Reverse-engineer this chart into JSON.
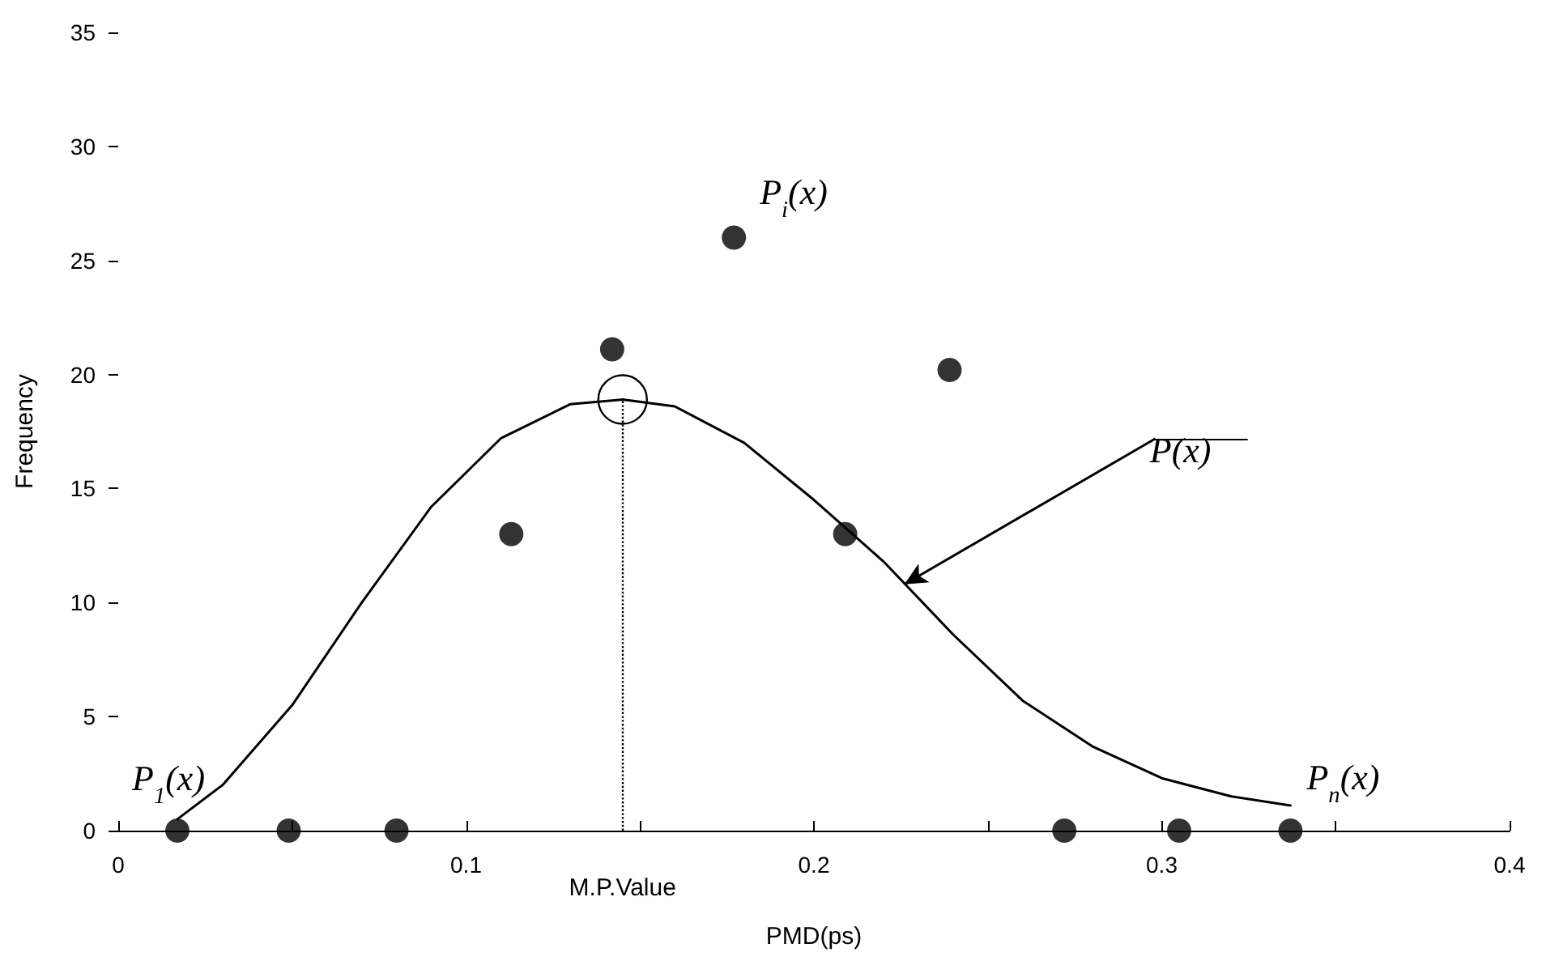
{
  "chart_data": {
    "type": "scatter",
    "xlabel": "PMD(ps)",
    "ylabel": "Frequency",
    "xlim": [
      0,
      0.4
    ],
    "ylim": [
      0,
      35
    ],
    "xticks": [
      0,
      {
        "value": 0.05,
        "label": null
      },
      0.1,
      {
        "value": 0.15,
        "label": null
      },
      0.2,
      {
        "value": 0.25,
        "label": null
      },
      0.3,
      {
        "value": 0.35,
        "label": null
      },
      0.4
    ],
    "yticks": [
      0,
      5,
      10,
      15,
      20,
      25,
      30,
      35
    ],
    "grid": false,
    "series": [
      {
        "marker": "circle",
        "color": "#000000",
        "x": [
          0.017,
          0.049,
          0.08,
          0.113,
          0.142,
          0.177,
          0.209,
          0.239,
          0.272,
          0.305,
          0.337
        ],
        "values": [
          0,
          0,
          0,
          13,
          21.1,
          26,
          13,
          20.2,
          0,
          0,
          0
        ]
      },
      {
        "type": "line",
        "marker": "none",
        "line_style": "solid",
        "color": "#000000",
        "x": [
          0.017,
          0.03,
          0.05,
          0.07,
          0.09,
          0.11,
          0.13,
          0.145,
          0.16,
          0.18,
          0.2,
          0.22,
          0.24,
          0.26,
          0.28,
          0.3,
          0.32,
          0.337
        ],
        "values": [
          0.5,
          2,
          5.5,
          10,
          14.2,
          17.2,
          18.7,
          18.9,
          18.6,
          17,
          14.5,
          11.8,
          8.6,
          5.7,
          3.7,
          2.3,
          1.5,
          1.1
        ]
      }
    ],
    "ref_lines": [
      {
        "axis": "x",
        "value": 0.145,
        "label": "M.P.Value",
        "line_style": "dotted",
        "color": "#000000"
      }
    ],
    "annotations": [
      {
        "text": "P$_{1}$(x)",
        "x": 0.017,
        "y": 0.5
      },
      {
        "text": "P$_{i}$(x)",
        "x": 0.177,
        "y": 26
      },
      {
        "text": "P(x)",
        "x": 0.226,
        "y": 10.8
      },
      {
        "text": "P$_{n}$(x)",
        "x": 0.337,
        "y": 1.1
      }
    ]
  }
}
